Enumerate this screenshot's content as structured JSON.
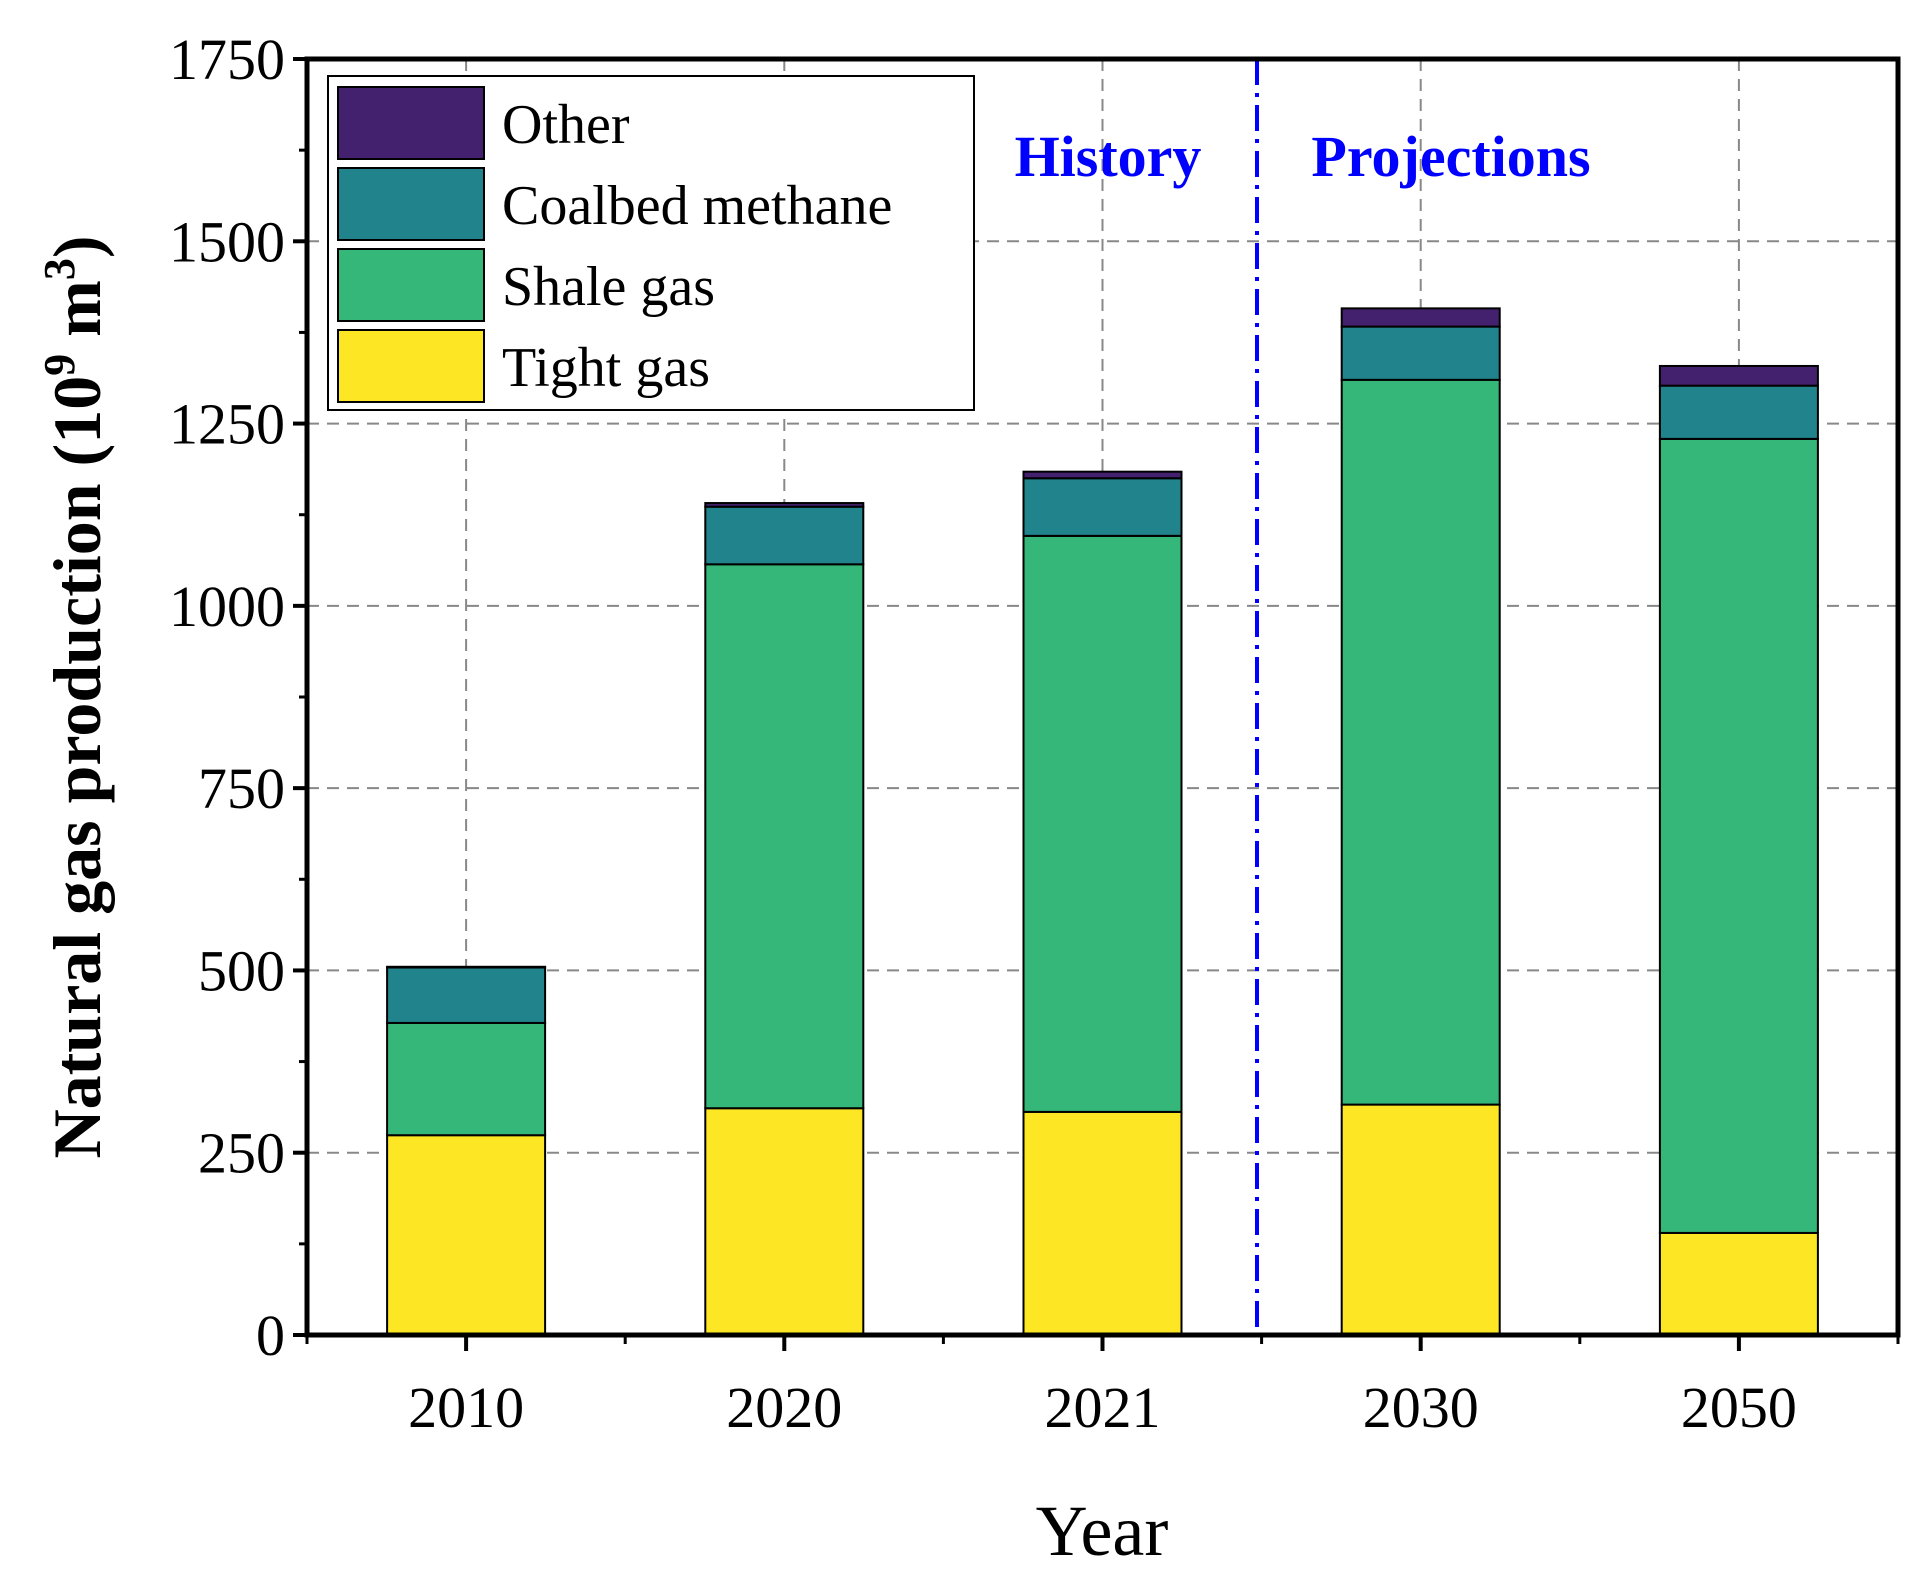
{
  "chart_data": {
    "type": "bar",
    "stacked": true,
    "title": "",
    "xlabel": "Year",
    "ylabel": "Natural gas production (10",
    "ylabel_exp": "9",
    "ylabel_unit": " m",
    "ylabel_unit_exp": "3",
    "ylabel_close": ")",
    "ylim": [
      0,
      1750
    ],
    "yticks": [
      0,
      250,
      500,
      750,
      1000,
      1250,
      1500,
      1750
    ],
    "grid": true,
    "legend_position": "top-left",
    "categories": [
      "2010",
      "2020",
      "2021",
      "2030",
      "2050"
    ],
    "series": [
      {
        "name": "Tight gas",
        "color": "#FDE725",
        "values": [
          274,
          311,
          306,
          316,
          140
        ]
      },
      {
        "name": "Shale gas",
        "color": "#35B779",
        "values": [
          154,
          746,
          790,
          994,
          1089
        ]
      },
      {
        "name": "Coalbed methane",
        "color": "#21838C",
        "values": [
          76,
          79,
          79,
          73,
          73
        ]
      },
      {
        "name": "Other",
        "color": "#44216E",
        "values": [
          1,
          5,
          9,
          25,
          27
        ]
      }
    ],
    "annotations": {
      "history": "History",
      "projections": "Projections",
      "color": "#0000FF"
    }
  }
}
